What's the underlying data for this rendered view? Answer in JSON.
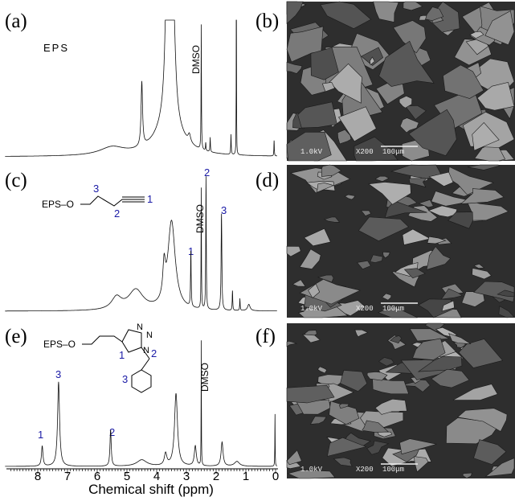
{
  "spectra": [
    {
      "label": "(a)",
      "sample": "EPS",
      "solvent": "DMSO"
    },
    {
      "label": "(c)",
      "structure": {
        "group": "EPS–O",
        "positions": [
          "1",
          "2",
          "3"
        ]
      },
      "solvent": "DMSO",
      "peak_labels": [
        "1",
        "2",
        "3"
      ]
    },
    {
      "label": "(e)",
      "structure": {
        "group": "EPS–O",
        "atoms": [
          "N",
          "N",
          "N"
        ],
        "positions": [
          "1",
          "2",
          "3"
        ]
      },
      "solvent": "DMSO",
      "peak_labels": [
        "1",
        "3",
        "2"
      ]
    }
  ],
  "x_axis": {
    "ticks": [
      "8",
      "7",
      "6",
      "5",
      "4",
      "3",
      "2",
      "1",
      "0"
    ],
    "label": "Chemical shift (ppm)"
  },
  "micrographs": [
    {
      "label": "(b)",
      "voltage": "1.0kV",
      "magnification": "X200",
      "scale_bar": "100μm"
    },
    {
      "label": "(d)",
      "voltage": "1.0kV",
      "magnification": "X200",
      "scale_bar": "100μm"
    },
    {
      "label": "(f)",
      "voltage": "1.0kV",
      "magnification": "X200",
      "scale_bar": "100μm"
    }
  ]
}
